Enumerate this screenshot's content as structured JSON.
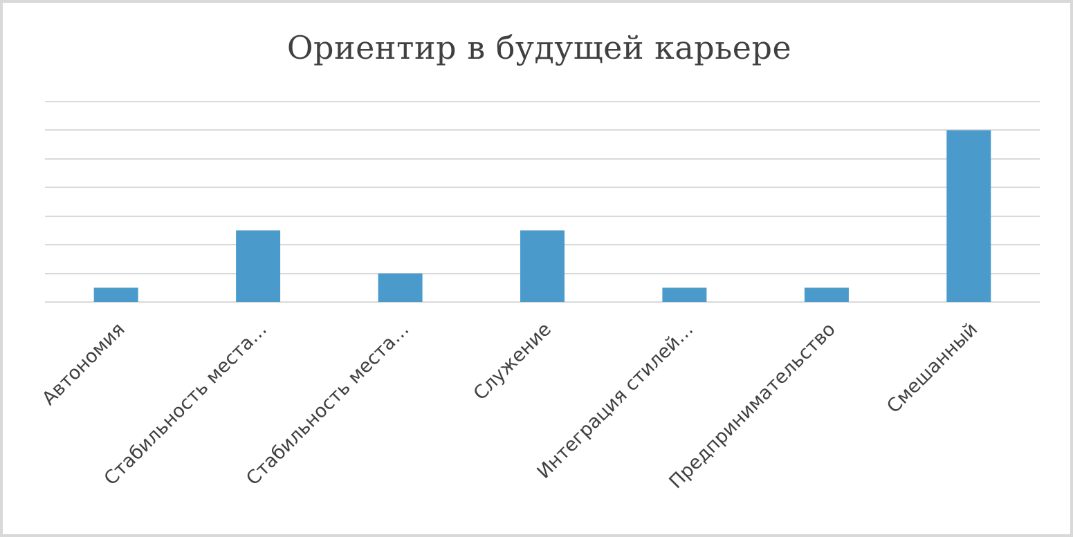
{
  "chart_data": {
    "type": "bar",
    "title": "Ориентир в будущей карьере",
    "xlabel": "",
    "ylabel": "",
    "categories": [
      "Автономия",
      "Стабильность места…",
      "Стабильность места…",
      "Служение",
      "Интеграция стилей…",
      "Предпринимательство",
      "Смешанный"
    ],
    "values": [
      1,
      5,
      2,
      5,
      1,
      1,
      12
    ],
    "ylim": [
      0,
      14
    ],
    "grid": true,
    "gridline_step": 2,
    "legend": "none",
    "colors": {
      "bar": "#4a9bcb",
      "grid": "#d9d9d9",
      "text": "#404040"
    }
  }
}
